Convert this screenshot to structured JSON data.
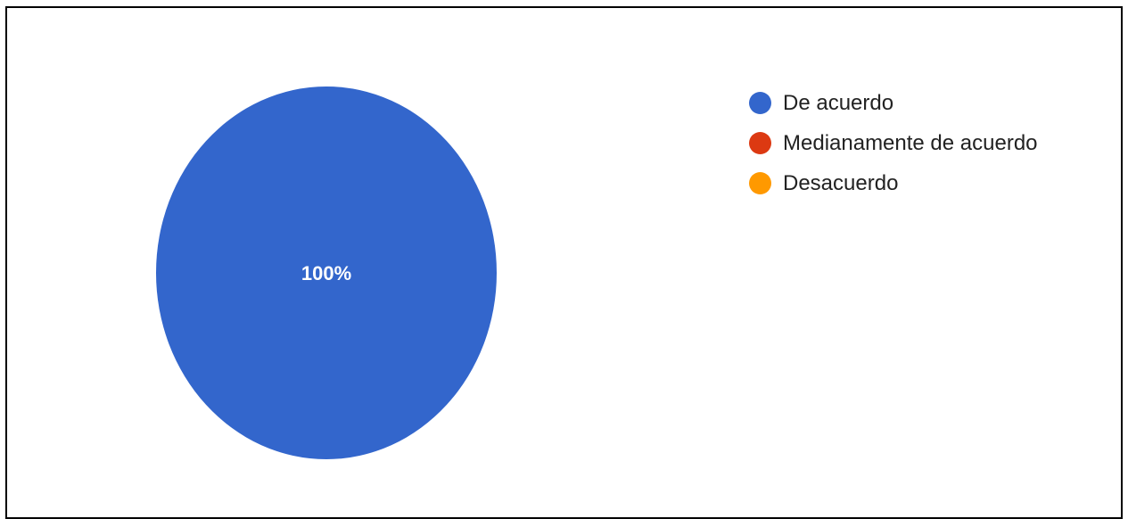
{
  "chart_data": {
    "type": "pie",
    "categories": [
      "De acuerdo",
      "Medianamente de acuerdo",
      "Desacuerdo"
    ],
    "values": [
      100,
      0,
      0
    ],
    "value_labels": [
      "100%"
    ],
    "colors": [
      "#3366cc",
      "#dc3912",
      "#ff9900"
    ],
    "legend_position": "right"
  }
}
